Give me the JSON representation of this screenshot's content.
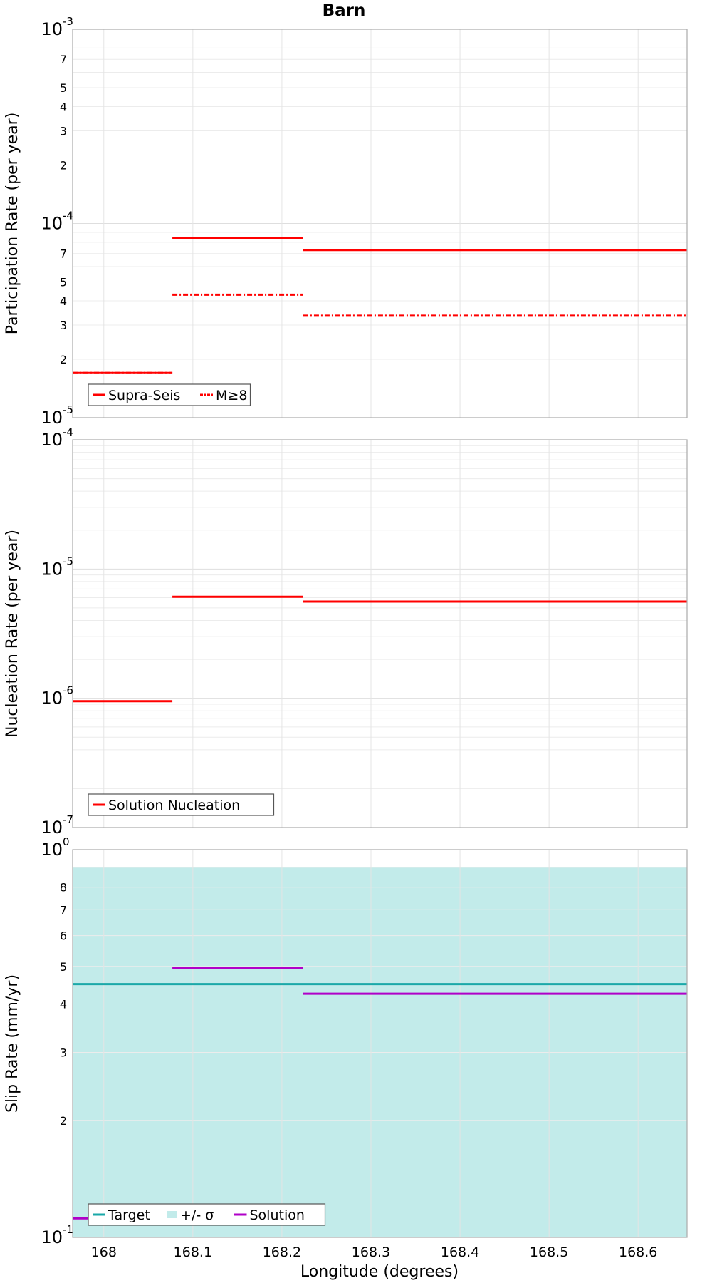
{
  "title": "Barn",
  "xlabel": "Longitude (degrees)",
  "xticks": [
    "168",
    "168.1",
    "168.2",
    "168.3",
    "168.4",
    "168.5",
    "168.6"
  ],
  "xrange": [
    167.965,
    168.655
  ],
  "chart_data": [
    {
      "type": "line",
      "ylabel": "Participation Rate (per year)",
      "yscale": "log",
      "ylim": [
        1e-05,
        0.001
      ],
      "grid": true,
      "legend_position": "bottom-left",
      "series": [
        {
          "name": "Supra-Seis",
          "color": "#ff0000",
          "style": "solid",
          "segments": [
            {
              "x0": 167.965,
              "x1": 168.077,
              "y": 1.7e-05
            },
            {
              "x0": 168.077,
              "x1": 168.224,
              "y": 8.4e-05
            },
            {
              "x0": 168.224,
              "x1": 168.655,
              "y": 7.3e-05
            }
          ]
        },
        {
          "name": "M≥8",
          "color": "#ff0000",
          "style": "dashdot",
          "segments": [
            {
              "x0": 167.965,
              "x1": 168.077,
              "y": 1.7e-05
            },
            {
              "x0": 168.077,
              "x1": 168.224,
              "y": 4.3e-05
            },
            {
              "x0": 168.224,
              "x1": 168.655,
              "y": 3.35e-05
            }
          ]
        }
      ]
    },
    {
      "type": "line",
      "ylabel": "Nucleation Rate (per year)",
      "yscale": "log",
      "ylim": [
        1e-07,
        0.0001
      ],
      "grid": true,
      "legend_position": "bottom-left",
      "series": [
        {
          "name": "Solution Nucleation",
          "color": "#ff0000",
          "style": "solid",
          "segments": [
            {
              "x0": 167.965,
              "x1": 168.077,
              "y": 9.5e-07
            },
            {
              "x0": 168.077,
              "x1": 168.224,
              "y": 6.1e-06
            },
            {
              "x0": 168.224,
              "x1": 168.655,
              "y": 5.6e-06
            }
          ]
        }
      ]
    },
    {
      "type": "line",
      "ylabel": "Slip Rate (mm/yr)",
      "yscale": "log",
      "ylim": [
        0.1,
        1
      ],
      "grid": true,
      "legend_position": "bottom-left",
      "band": {
        "name": "+/- σ",
        "color": "#c2ebea",
        "y0": 0.1,
        "y1": 0.9
      },
      "series": [
        {
          "name": "Target",
          "color": "#1aa8a8",
          "style": "solid",
          "segments": [
            {
              "x0": 167.965,
              "x1": 168.655,
              "y": 0.45
            }
          ]
        },
        {
          "name": "Solution",
          "color": "#b000c8",
          "style": "solid",
          "segments": [
            {
              "x0": 167.965,
              "x1": 168.077,
              "y": 0.112
            },
            {
              "x0": 168.077,
              "x1": 168.224,
              "y": 0.495
            },
            {
              "x0": 168.224,
              "x1": 168.655,
              "y": 0.425
            }
          ]
        }
      ]
    }
  ],
  "panels": [
    {
      "major": [
        {
          "base": "10",
          "exp": "-3"
        },
        {
          "base": "10",
          "exp": "-4"
        },
        {
          "base": "10",
          "exp": "-5"
        }
      ],
      "minor": [
        "7",
        "5",
        "4",
        "3",
        "2",
        "7",
        "5",
        "4",
        "3",
        "2"
      ],
      "legend": [
        "Supra-Seis",
        "M≥8"
      ]
    },
    {
      "major": [
        {
          "base": "10",
          "exp": "-4"
        },
        {
          "base": "10",
          "exp": "-5"
        },
        {
          "base": "10",
          "exp": "-6"
        },
        {
          "base": "10",
          "exp": "-7"
        }
      ],
      "minor": [],
      "legend": [
        "Solution Nucleation"
      ]
    },
    {
      "major": [
        {
          "base": "10",
          "exp": "0"
        },
        {
          "base": "10",
          "exp": "-1"
        }
      ],
      "minor": [
        "8",
        "7",
        "6",
        "5",
        "4",
        "3",
        "2"
      ],
      "legend": [
        "Target",
        "+/- σ",
        "Solution"
      ]
    }
  ]
}
